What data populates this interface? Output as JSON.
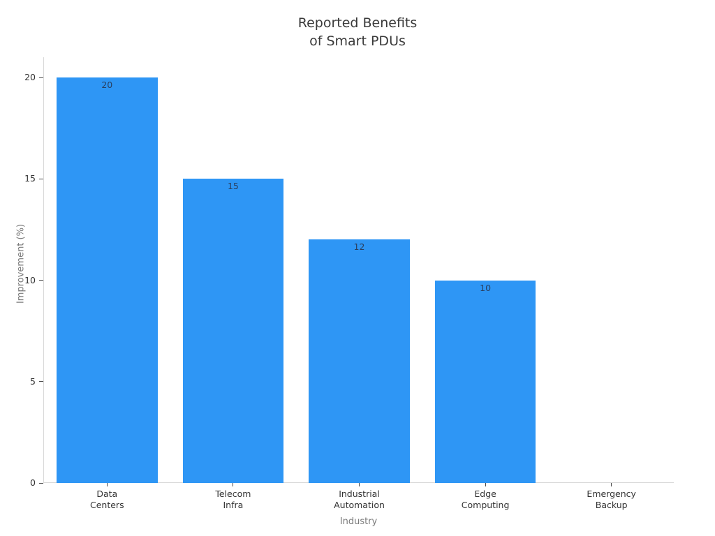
{
  "figure": {
    "title": "Reported Benefits\nof Smart PDUs"
  },
  "chart_data": {
    "type": "bar",
    "title": "Reported Benefits of Smart PDUs",
    "xlabel": "Industry",
    "ylabel": "Improvement (%)",
    "categories": [
      "Data\nCenters",
      "Telecom\nInfra",
      "Industrial\nAutomation",
      "Edge\nComputing",
      "Emergency\nBackup"
    ],
    "values": [
      20,
      15,
      12,
      10,
      0
    ],
    "bar_labels": [
      "20",
      "15",
      "12",
      "10",
      ""
    ],
    "yticks": [
      0,
      5,
      10,
      15,
      20
    ],
    "ylim": [
      0,
      21
    ],
    "grid": false,
    "legend": "none",
    "bar_width_fraction": 0.8,
    "colors": {
      "bar": "#2e96f5",
      "bar_label": "#2a3f5f",
      "axis_line": "#d9d9d9",
      "tick_mark": "#4a4a4a",
      "tick_label": "#333333",
      "axis_title": "#7a7a7a",
      "title": "#3a3a3a",
      "background": "#ffffff"
    }
  }
}
